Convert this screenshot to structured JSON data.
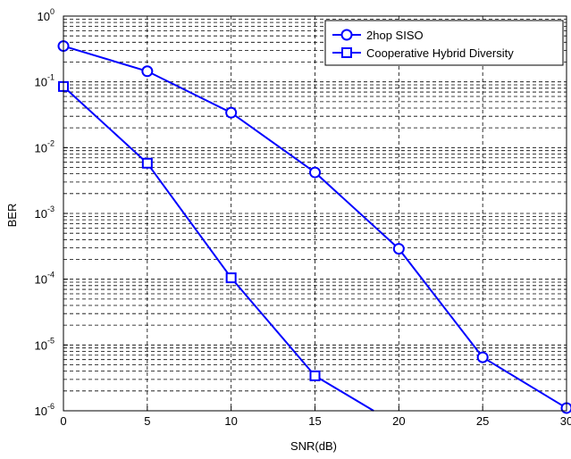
{
  "chart_data": {
    "type": "line",
    "title": "",
    "xlabel": "SNR(dB)",
    "ylabel": "BER",
    "x_scale": "linear",
    "y_scale": "log",
    "xlim": [
      0,
      30
    ],
    "ylim": [
      1e-06,
      1
    ],
    "x_ticks": [
      0,
      5,
      10,
      15,
      20,
      25,
      30
    ],
    "x_tick_labels": [
      "0",
      "5",
      "10",
      "15",
      "20",
      "25",
      "30"
    ],
    "y_ticks": [
      {
        "base": "10",
        "exp": "-6"
      },
      {
        "base": "10",
        "exp": "-5"
      },
      {
        "base": "10",
        "exp": "-4"
      },
      {
        "base": "10",
        "exp": "-3"
      },
      {
        "base": "10",
        "exp": "-2"
      },
      {
        "base": "10",
        "exp": "-1"
      },
      {
        "base": "10",
        "exp": "0"
      }
    ],
    "grid": true,
    "legend_position": "top-right",
    "series": [
      {
        "name": "2hop SISO",
        "color": "#0000ff",
        "marker": "circle",
        "x": [
          0,
          5,
          10,
          15,
          20,
          25,
          30
        ],
        "y": [
          0.35,
          0.145,
          0.034,
          0.0042,
          0.00029,
          6.5e-06,
          1.1e-06
        ]
      },
      {
        "name": "Cooperative Hybrid Diversity",
        "color": "#0000ff",
        "marker": "square",
        "x": [
          0,
          5,
          10,
          15,
          18.5
        ],
        "y": [
          0.085,
          0.0058,
          0.000105,
          3.4e-06,
          1e-06
        ]
      }
    ]
  }
}
